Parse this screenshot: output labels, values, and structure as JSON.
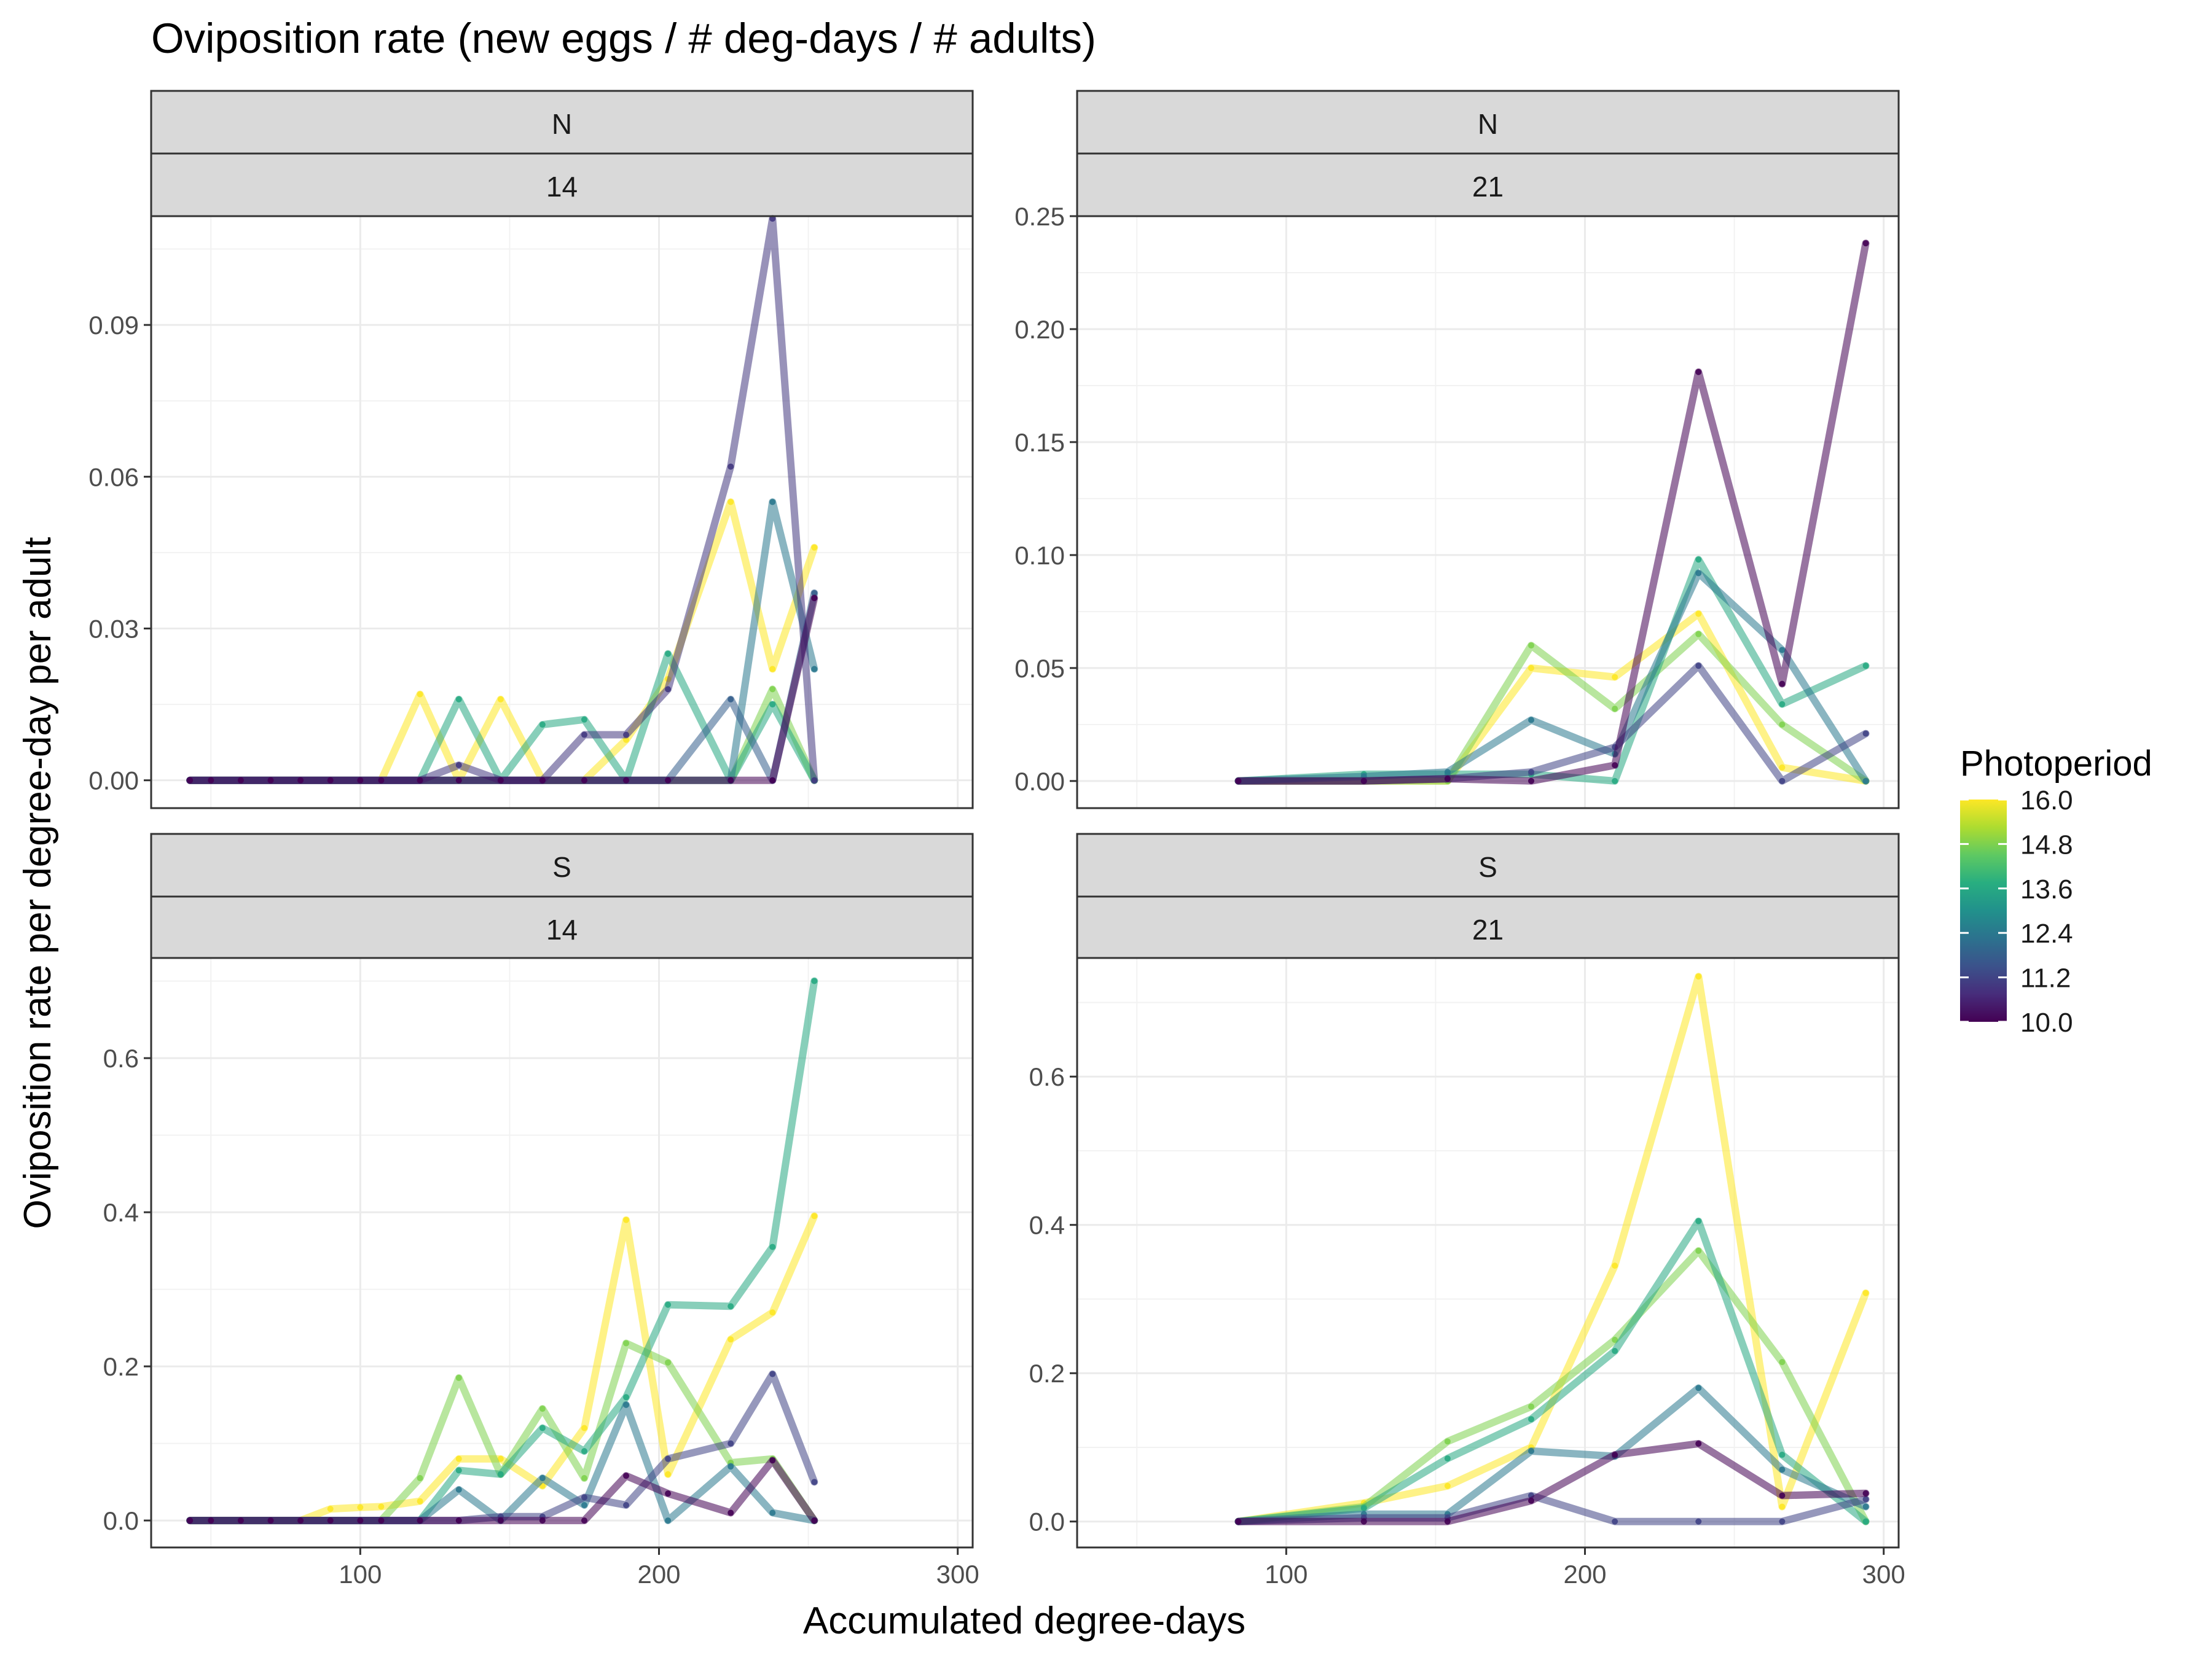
{
  "chart_data": {
    "type": "line",
    "title": "Oviposition rate (new eggs / # deg-days / # adults)",
    "xlabel": "Accumulated degree-days",
    "ylabel": "Oviposition rate per degree-day per adult",
    "legend": {
      "title": "Photoperiod",
      "placement": "right",
      "min": 10.0,
      "max": 16.0,
      "tick_labels": [
        "16.0",
        "14.8",
        "13.6",
        "12.4",
        "11.2",
        "10.0"
      ],
      "tick_values": [
        16.0,
        14.8,
        13.6,
        12.4,
        11.2,
        10.0
      ],
      "colorscale": "viridis"
    },
    "grid": true,
    "panels": [
      {
        "strip_top": "N",
        "strip_bottom": "14",
        "xlim": [
          30,
          305
        ],
        "ylim": [
          -0.0055,
          0.1115
        ],
        "xticks": [
          100,
          200,
          300
        ],
        "xtick_labels": [
          "100",
          "200",
          "300"
        ],
        "yticks": [
          0.0,
          0.03,
          0.06,
          0.09
        ],
        "ytick_labels": [
          "0.00",
          "0.03",
          "0.06",
          "0.09"
        ],
        "series": [
          {
            "photoperiod": 16.0,
            "x": [
              43,
              50,
              60,
              70,
              80,
              90,
              100,
              107,
              120,
              133,
              147,
              161,
              175,
              189,
              203,
              224,
              238,
              252
            ],
            "y": [
              0,
              0,
              0,
              0,
              0,
              0,
              0,
              0,
              0.017,
              0,
              0.016,
              0,
              0,
              0.008,
              0.02,
              0.055,
              0.022,
              0.046
            ]
          },
          {
            "photoperiod": 14.8,
            "x": [
              43,
              50,
              60,
              70,
              80,
              90,
              100,
              107,
              120,
              133,
              147,
              161,
              175,
              189,
              203,
              224,
              238,
              252
            ],
            "y": [
              0,
              0,
              0,
              0,
              0,
              0,
              0,
              0,
              0,
              0,
              0,
              0,
              0,
              0,
              0,
              0,
              0.018,
              0
            ]
          },
          {
            "photoperiod": 13.6,
            "x": [
              43,
              50,
              60,
              70,
              80,
              90,
              100,
              107,
              120,
              133,
              147,
              161,
              175,
              189,
              203,
              224,
              238,
              252
            ],
            "y": [
              0,
              0,
              0,
              0,
              0,
              0,
              0,
              0,
              0,
              0.016,
              0,
              0.011,
              0.012,
              0,
              0.025,
              0,
              0.015,
              0
            ]
          },
          {
            "photoperiod": 12.4,
            "x": [
              43,
              50,
              60,
              70,
              80,
              90,
              100,
              107,
              120,
              133,
              147,
              161,
              175,
              189,
              203,
              224,
              238,
              252
            ],
            "y": [
              0,
              0,
              0,
              0,
              0,
              0,
              0,
              0,
              0,
              0,
              0,
              0,
              0,
              0,
              0,
              0,
              0.055,
              0.022
            ]
          },
          {
            "photoperiod": 11.8,
            "x": [
              43,
              50,
              60,
              70,
              80,
              90,
              100,
              107,
              120,
              133,
              147,
              161,
              175,
              189,
              203,
              224,
              238,
              252
            ],
            "y": [
              0,
              0,
              0,
              0,
              0,
              0,
              0,
              0,
              0,
              0,
              0,
              0,
              0,
              0,
              0,
              0.016,
              0,
              0.037
            ]
          },
          {
            "photoperiod": 11.0,
            "x": [
              43,
              50,
              60,
              70,
              80,
              90,
              100,
              107,
              120,
              133,
              147,
              161,
              175,
              189,
              203,
              224,
              238,
              252
            ],
            "y": [
              0,
              0,
              0,
              0,
              0,
              0,
              0,
              0,
              0,
              0.003,
              0,
              0,
              0.009,
              0.009,
              0.018,
              0.062,
              0.111,
              0
            ]
          },
          {
            "photoperiod": 10.0,
            "x": [
              43,
              50,
              60,
              70,
              80,
              90,
              100,
              107,
              120,
              133,
              147,
              161,
              175,
              189,
              203,
              224,
              238,
              252
            ],
            "y": [
              0,
              0,
              0,
              0,
              0,
              0,
              0,
              0,
              0,
              0,
              0,
              0,
              0,
              0,
              0,
              0,
              0,
              0.036
            ]
          }
        ]
      },
      {
        "strip_top": "N",
        "strip_bottom": "21",
        "xlim": [
          30,
          305
        ],
        "ylim": [
          -0.012,
          0.25
        ],
        "xticks": [
          100,
          200,
          300
        ],
        "xtick_labels": [
          "100",
          "200",
          "300"
        ],
        "yticks": [
          0.0,
          0.05,
          0.1,
          0.15,
          0.2,
          0.25
        ],
        "ytick_labels": [
          "0.00",
          "0.05",
          "0.10",
          "0.15",
          "0.20",
          "0.25"
        ],
        "series": [
          {
            "photoperiod": 16.0,
            "x": [
              84,
              126,
              154,
              182,
              210,
              238,
              266,
              294
            ],
            "y": [
              0,
              0,
              0,
              0.05,
              0.046,
              0.074,
              0.006,
              0
            ]
          },
          {
            "photoperiod": 14.8,
            "x": [
              84,
              126,
              154,
              182,
              210,
              238,
              266,
              294
            ],
            "y": [
              0,
              0,
              0,
              0.06,
              0.032,
              0.065,
              0.025,
              0
            ]
          },
          {
            "photoperiod": 13.6,
            "x": [
              84,
              126,
              154,
              182,
              210,
              238,
              266,
              294
            ],
            "y": [
              0,
              0.003,
              0.003,
              0.003,
              0,
              0.098,
              0.034,
              0.051
            ]
          },
          {
            "photoperiod": 12.4,
            "x": [
              84,
              126,
              154,
              182,
              210,
              238,
              266,
              294
            ],
            "y": [
              0,
              0.002,
              0.004,
              0.027,
              0.012,
              0.092,
              0.058,
              0
            ]
          },
          {
            "photoperiod": 11.2,
            "x": [
              84,
              126,
              154,
              182,
              210,
              238,
              266,
              294
            ],
            "y": [
              0,
              0,
              0.001,
              0.004,
              0.015,
              0.051,
              0,
              0.021
            ]
          },
          {
            "photoperiod": 10.0,
            "x": [
              84,
              126,
              154,
              182,
              210,
              238,
              266,
              294
            ],
            "y": [
              0,
              0,
              0.001,
              0,
              0.007,
              0.181,
              0.043,
              0.238
            ]
          }
        ]
      },
      {
        "strip_top": "S",
        "strip_bottom": "14",
        "xlim": [
          30,
          305
        ],
        "ylim": [
          -0.035,
          0.73
        ],
        "xticks": [
          100,
          200,
          300
        ],
        "xtick_labels": [
          "100",
          "200",
          "300"
        ],
        "yticks": [
          0.0,
          0.2,
          0.4,
          0.6
        ],
        "ytick_labels": [
          "0.0",
          "0.2",
          "0.4",
          "0.6"
        ],
        "series": [
          {
            "photoperiod": 16.0,
            "x": [
              43,
              50,
              60,
              70,
              80,
              90,
              100,
              107,
              120,
              133,
              147,
              161,
              175,
              189,
              203,
              224,
              238,
              252
            ],
            "y": [
              0,
              0,
              0,
              0,
              0,
              0.015,
              0.017,
              0.018,
              0.025,
              0.08,
              0.08,
              0.045,
              0.12,
              0.39,
              0.06,
              0.235,
              0.27,
              0.395
            ]
          },
          {
            "photoperiod": 14.8,
            "x": [
              43,
              50,
              60,
              70,
              80,
              90,
              100,
              107,
              120,
              133,
              147,
              161,
              175,
              189,
              203,
              224,
              238,
              252
            ],
            "y": [
              0,
              0,
              0,
              0,
              0,
              0,
              0,
              0,
              0.055,
              0.185,
              0.06,
              0.145,
              0.055,
              0.23,
              0.205,
              0.075,
              0.08,
              0
            ]
          },
          {
            "photoperiod": 13.6,
            "x": [
              43,
              50,
              60,
              70,
              80,
              90,
              100,
              107,
              120,
              133,
              147,
              161,
              175,
              189,
              203,
              224,
              238,
              252
            ],
            "y": [
              0,
              0,
              0,
              0,
              0,
              0,
              0,
              0,
              0,
              0.065,
              0.06,
              0.12,
              0.09,
              0.16,
              0.28,
              0.278,
              0.355,
              0.7
            ]
          },
          {
            "photoperiod": 12.4,
            "x": [
              43,
              50,
              60,
              70,
              80,
              90,
              100,
              107,
              120,
              133,
              147,
              161,
              175,
              189,
              203,
              224,
              238,
              252
            ],
            "y": [
              0,
              0,
              0,
              0,
              0,
              0,
              0,
              0,
              0,
              0.04,
              0,
              0.055,
              0.02,
              0.15,
              0,
              0.07,
              0.01,
              0
            ]
          },
          {
            "photoperiod": 11.2,
            "x": [
              43,
              50,
              60,
              70,
              80,
              90,
              100,
              107,
              120,
              133,
              147,
              161,
              175,
              189,
              203,
              224,
              238,
              252
            ],
            "y": [
              0,
              0,
              0,
              0,
              0,
              0,
              0,
              0,
              0,
              0,
              0.005,
              0.005,
              0.03,
              0.02,
              0.08,
              0.1,
              0.19,
              0.05
            ]
          },
          {
            "photoperiod": 10.0,
            "x": [
              43,
              50,
              60,
              70,
              80,
              90,
              100,
              107,
              120,
              133,
              147,
              161,
              175,
              189,
              203,
              224,
              238,
              252
            ],
            "y": [
              0,
              0,
              0,
              0,
              0,
              0,
              0,
              0,
              0,
              0,
              0,
              0,
              0,
              0.058,
              0.035,
              0.01,
              0.078,
              0
            ]
          }
        ]
      },
      {
        "strip_top": "S",
        "strip_bottom": "21",
        "xlim": [
          30,
          305
        ],
        "ylim": [
          -0.035,
          0.76
        ],
        "xticks": [
          100,
          200,
          300
        ],
        "xtick_labels": [
          "100",
          "200",
          "300"
        ],
        "yticks": [
          0.0,
          0.2,
          0.4,
          0.6
        ],
        "ytick_labels": [
          "0.0",
          "0.2",
          "0.4",
          "0.6"
        ],
        "series": [
          {
            "photoperiod": 16.0,
            "x": [
              84,
              126,
              154,
              182,
              210,
              238,
              266,
              294
            ],
            "y": [
              0,
              0.025,
              0.048,
              0.1,
              0.345,
              0.735,
              0.02,
              0.308
            ]
          },
          {
            "photoperiod": 14.8,
            "x": [
              84,
              126,
              154,
              182,
              210,
              238,
              266,
              294
            ],
            "y": [
              0,
              0.02,
              0.108,
              0.155,
              0.245,
              0.365,
              0.215,
              0
            ]
          },
          {
            "photoperiod": 13.6,
            "x": [
              84,
              126,
              154,
              182,
              210,
              238,
              266,
              294
            ],
            "y": [
              0,
              0.018,
              0.085,
              0.138,
              0.23,
              0.405,
              0.09,
              0
            ]
          },
          {
            "photoperiod": 12.4,
            "x": [
              84,
              126,
              154,
              182,
              210,
              238,
              266,
              294
            ],
            "y": [
              0,
              0.01,
              0.01,
              0.095,
              0.088,
              0.18,
              0.07,
              0.02
            ]
          },
          {
            "photoperiod": 11.2,
            "x": [
              84,
              126,
              154,
              182,
              210,
              238,
              266,
              294
            ],
            "y": [
              0,
              0.005,
              0.005,
              0.035,
              0,
              0,
              0,
              0.03
            ]
          },
          {
            "photoperiod": 10.0,
            "x": [
              84,
              126,
              154,
              182,
              210,
              238,
              266,
              294
            ],
            "y": [
              0,
              0,
              0,
              0.028,
              0.09,
              0.105,
              0.035,
              0.038
            ]
          }
        ]
      }
    ]
  }
}
